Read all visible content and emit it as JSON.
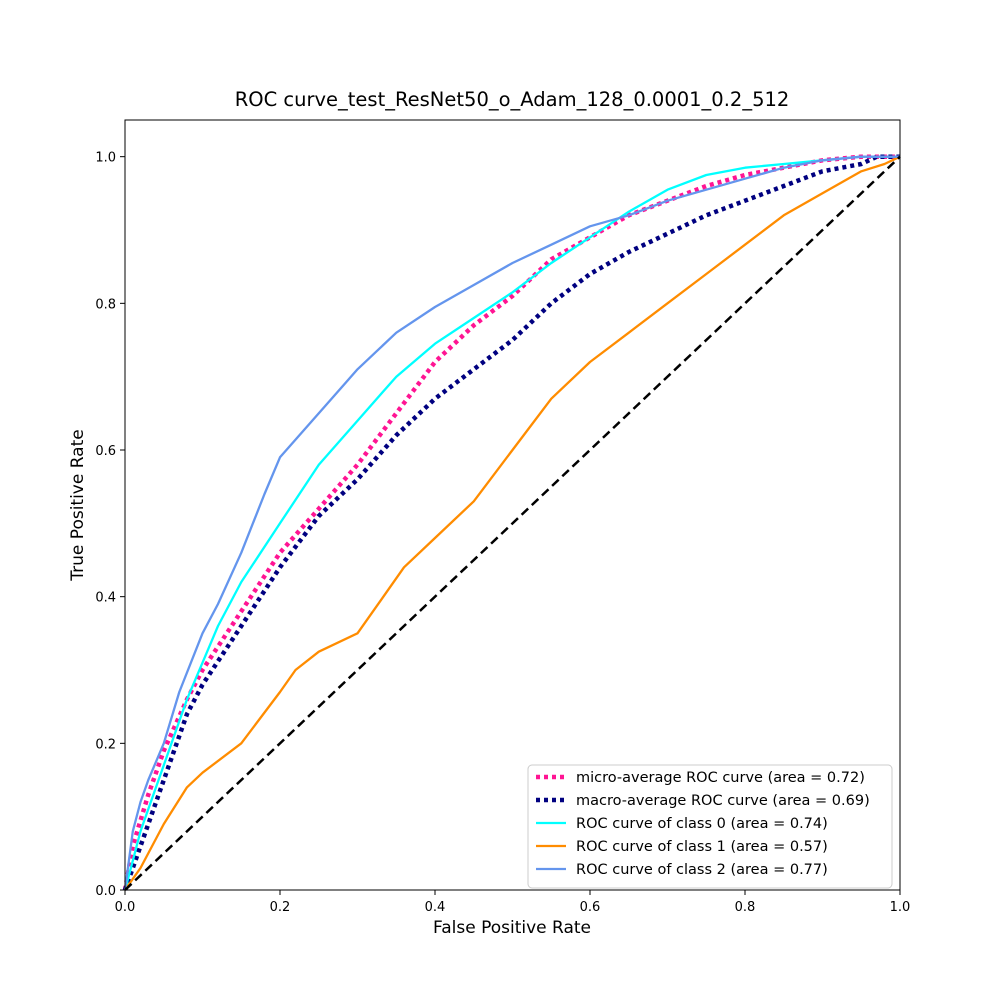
{
  "chart_data": {
    "type": "line",
    "title": "ROC curve_test_ResNet50_o_Adam_128_0.0001_0.2_512",
    "xlabel": "False Positive Rate",
    "ylabel": "True Positive Rate",
    "xlim": [
      0.0,
      1.0
    ],
    "ylim": [
      0.0,
      1.05
    ],
    "xticks": [
      0.0,
      0.2,
      0.4,
      0.6,
      0.8,
      1.0
    ],
    "yticks": [
      0.0,
      0.2,
      0.4,
      0.6,
      0.8,
      1.0
    ],
    "xtick_labels": [
      "0.0",
      "0.2",
      "0.4",
      "0.6",
      "0.8",
      "1.0"
    ],
    "ytick_labels": [
      "0.0",
      "0.2",
      "0.4",
      "0.6",
      "0.8",
      "1.0"
    ],
    "grid": false,
    "legend_position": "lower-right",
    "series": [
      {
        "name": "micro-average ROC curve (area = 0.72)",
        "color": "#ff1493",
        "style": "dotted",
        "x": [
          0.0,
          0.01,
          0.03,
          0.05,
          0.08,
          0.1,
          0.15,
          0.2,
          0.25,
          0.3,
          0.35,
          0.4,
          0.45,
          0.5,
          0.55,
          0.6,
          0.65,
          0.7,
          0.75,
          0.8,
          0.85,
          0.9,
          0.95,
          1.0
        ],
        "y": [
          0.0,
          0.06,
          0.13,
          0.19,
          0.26,
          0.3,
          0.38,
          0.46,
          0.52,
          0.58,
          0.65,
          0.72,
          0.77,
          0.81,
          0.86,
          0.89,
          0.92,
          0.94,
          0.96,
          0.975,
          0.985,
          0.995,
          1.0,
          1.0
        ]
      },
      {
        "name": "macro-average ROC curve (area = 0.69)",
        "color": "#000080",
        "style": "dotted",
        "x": [
          0.0,
          0.01,
          0.03,
          0.05,
          0.08,
          0.1,
          0.15,
          0.2,
          0.25,
          0.3,
          0.35,
          0.4,
          0.45,
          0.5,
          0.55,
          0.6,
          0.65,
          0.7,
          0.75,
          0.8,
          0.85,
          0.9,
          0.95,
          0.97,
          1.0
        ],
        "y": [
          0.0,
          0.03,
          0.09,
          0.15,
          0.24,
          0.28,
          0.36,
          0.44,
          0.51,
          0.56,
          0.62,
          0.67,
          0.71,
          0.75,
          0.8,
          0.84,
          0.87,
          0.895,
          0.92,
          0.94,
          0.96,
          0.98,
          0.99,
          1.0,
          1.0
        ]
      },
      {
        "name": "ROC curve of class 0 (area = 0.74)",
        "color": "#00ffff",
        "style": "solid",
        "x": [
          0.0,
          0.01,
          0.02,
          0.04,
          0.06,
          0.08,
          0.1,
          0.12,
          0.15,
          0.2,
          0.25,
          0.3,
          0.35,
          0.4,
          0.45,
          0.5,
          0.55,
          0.6,
          0.65,
          0.7,
          0.75,
          0.8,
          0.85,
          0.9,
          0.95,
          1.0
        ],
        "y": [
          0.0,
          0.04,
          0.08,
          0.14,
          0.2,
          0.26,
          0.31,
          0.36,
          0.42,
          0.5,
          0.58,
          0.64,
          0.7,
          0.745,
          0.78,
          0.815,
          0.855,
          0.89,
          0.925,
          0.955,
          0.975,
          0.985,
          0.99,
          0.995,
          1.0,
          1.0
        ]
      },
      {
        "name": "ROC curve of class 1 (area = 0.57)",
        "color": "#ff8c00",
        "style": "solid",
        "x": [
          0.0,
          0.02,
          0.05,
          0.08,
          0.1,
          0.15,
          0.2,
          0.22,
          0.25,
          0.3,
          0.33,
          0.36,
          0.4,
          0.45,
          0.5,
          0.55,
          0.6,
          0.65,
          0.7,
          0.75,
          0.8,
          0.85,
          0.9,
          0.95,
          0.98,
          1.0
        ],
        "y": [
          0.0,
          0.03,
          0.09,
          0.14,
          0.16,
          0.2,
          0.27,
          0.3,
          0.325,
          0.35,
          0.395,
          0.44,
          0.48,
          0.53,
          0.6,
          0.67,
          0.72,
          0.76,
          0.8,
          0.84,
          0.88,
          0.92,
          0.95,
          0.98,
          0.99,
          1.0
        ]
      },
      {
        "name": "ROC curve of class 2 (area = 0.77)",
        "color": "#6495ed",
        "style": "solid",
        "x": [
          0.0,
          0.01,
          0.02,
          0.03,
          0.05,
          0.07,
          0.1,
          0.12,
          0.15,
          0.18,
          0.2,
          0.25,
          0.3,
          0.35,
          0.4,
          0.45,
          0.5,
          0.55,
          0.6,
          0.65,
          0.7,
          0.75,
          0.8,
          0.85,
          0.9,
          0.95,
          0.97,
          1.0
        ],
        "y": [
          0.0,
          0.08,
          0.12,
          0.15,
          0.2,
          0.27,
          0.35,
          0.39,
          0.46,
          0.54,
          0.59,
          0.65,
          0.71,
          0.76,
          0.795,
          0.825,
          0.855,
          0.88,
          0.905,
          0.92,
          0.94,
          0.955,
          0.97,
          0.985,
          0.995,
          1.0,
          1.0,
          1.0
        ]
      },
      {
        "name": "",
        "color": "#000000",
        "style": "dashed",
        "x": [
          0.0,
          1.0
        ],
        "y": [
          0.0,
          1.0
        ]
      }
    ]
  }
}
